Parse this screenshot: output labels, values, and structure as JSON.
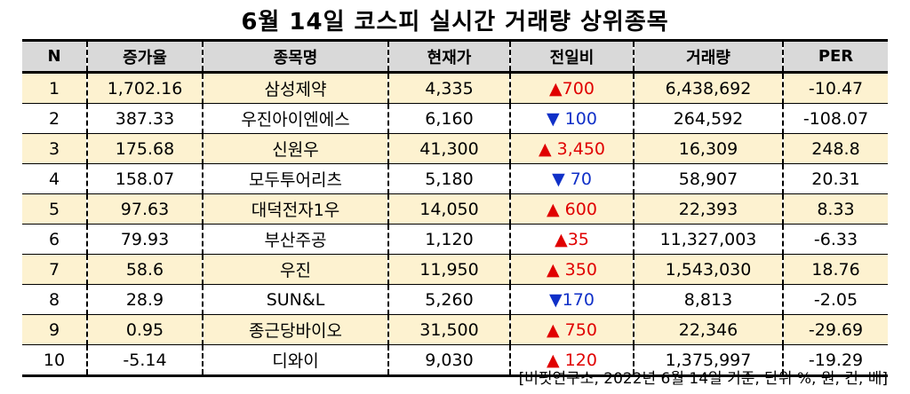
{
  "title": "6월 14일 코스피 실시간 거래량 상위종목",
  "columns": [
    "N",
    "증가율",
    "종목명",
    "현재가",
    "전일비",
    "거래량",
    "PER"
  ],
  "rows": [
    {
      "n": "1",
      "rate": "1,702.16",
      "name": "삼성제약",
      "price": "4,335",
      "change": "▲700",
      "dir": "up",
      "volume": "6,438,692",
      "per": "-10.47"
    },
    {
      "n": "2",
      "rate": "387.33",
      "name": "우진아이엔에스",
      "price": "6,160",
      "change": "▼ 100",
      "dir": "down",
      "volume": "264,592",
      "per": "-108.07"
    },
    {
      "n": "3",
      "rate": "175.68",
      "name": "신원우",
      "price": "41,300",
      "change": "▲ 3,450",
      "dir": "up",
      "volume": "16,309",
      "per": "248.8"
    },
    {
      "n": "4",
      "rate": "158.07",
      "name": "모두투어리츠",
      "price": "5,180",
      "change": "▼ 70",
      "dir": "down",
      "volume": "58,907",
      "per": "20.31"
    },
    {
      "n": "5",
      "rate": "97.63",
      "name": "대덕전자1우",
      "price": "14,050",
      "change": "▲ 600",
      "dir": "up",
      "volume": "22,393",
      "per": "8.33"
    },
    {
      "n": "6",
      "rate": "79.93",
      "name": "부산주공",
      "price": "1,120",
      "change": "▲35",
      "dir": "up",
      "volume": "11,327,003",
      "per": "-6.33"
    },
    {
      "n": "7",
      "rate": "58.6",
      "name": "우진",
      "price": "11,950",
      "change": "▲ 350",
      "dir": "up",
      "volume": "1,543,030",
      "per": "18.76"
    },
    {
      "n": "8",
      "rate": "28.9",
      "name": "SUN&L",
      "price": "5,260",
      "change": "▼170",
      "dir": "down",
      "volume": "8,813",
      "per": "-2.05"
    },
    {
      "n": "9",
      "rate": "0.95",
      "name": "종근당바이오",
      "price": "31,500",
      "change": "▲ 750",
      "dir": "up",
      "volume": "22,346",
      "per": "-29.69"
    },
    {
      "n": "10",
      "rate": "-5.14",
      "name": "디와이",
      "price": "9,030",
      "change": "▲ 120",
      "dir": "up",
      "volume": "1,375,997",
      "per": "-19.29"
    }
  ],
  "footer": "[버핏연구소, 2022년 6월 14일 기준, 단위 %, 원, 건, 배]",
  "colors": {
    "header_bg": "#d9d9d9",
    "odd_row_bg": "#fdf2d0",
    "up": "#e00000",
    "down": "#1030c8"
  }
}
